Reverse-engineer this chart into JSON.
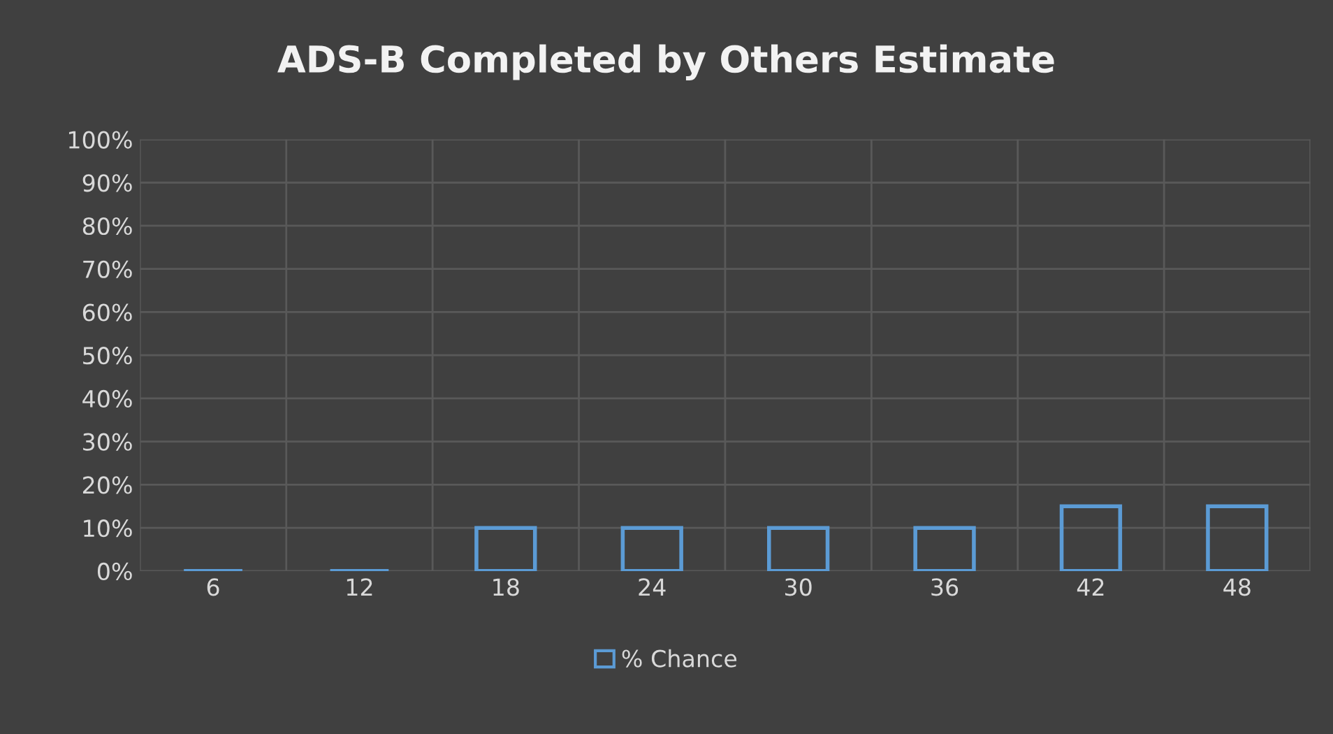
{
  "chart_data": {
    "type": "bar",
    "title": "ADS-B Completed by Others Estimate",
    "categories": [
      "6",
      "12",
      "18",
      "24",
      "30",
      "36",
      "42",
      "48"
    ],
    "series": [
      {
        "name": "% Chance",
        "color": "#5b9bd5",
        "values": [
          0,
          0,
          10,
          10,
          10,
          10,
          15,
          15
        ]
      }
    ],
    "ylim": [
      0,
      100
    ],
    "yticks": [
      {
        "value": 0,
        "label": "0%"
      },
      {
        "value": 10,
        "label": "10%"
      },
      {
        "value": 20,
        "label": "20%"
      },
      {
        "value": 30,
        "label": "30%"
      },
      {
        "value": 40,
        "label": "40%"
      },
      {
        "value": 50,
        "label": "50%"
      },
      {
        "value": 60,
        "label": "60%"
      },
      {
        "value": 70,
        "label": "70%"
      },
      {
        "value": 80,
        "label": "80%"
      },
      {
        "value": 90,
        "label": "90%"
      },
      {
        "value": 100,
        "label": "100%"
      }
    ],
    "grid": true,
    "legend": "bottom"
  }
}
